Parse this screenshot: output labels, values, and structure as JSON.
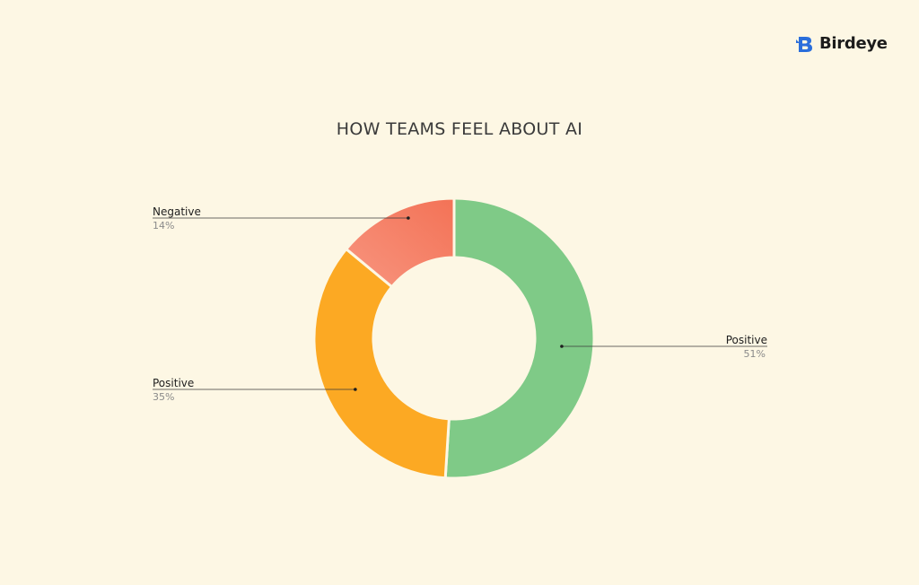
{
  "brand": {
    "name": "Birdeye",
    "color": "#2a6edb"
  },
  "chart_data": {
    "type": "pie",
    "title": "HOW TEAMS FEEL ABOUT AI",
    "donut": true,
    "slices": [
      {
        "label": "Positive",
        "value": 51,
        "display": "51%",
        "color": "#7fca87"
      },
      {
        "label": "Positive",
        "value": 35,
        "display": "35%",
        "color": "#fca923"
      },
      {
        "label": "Negative",
        "value": 14,
        "display": "14%",
        "color": "#f47f68"
      }
    ]
  }
}
